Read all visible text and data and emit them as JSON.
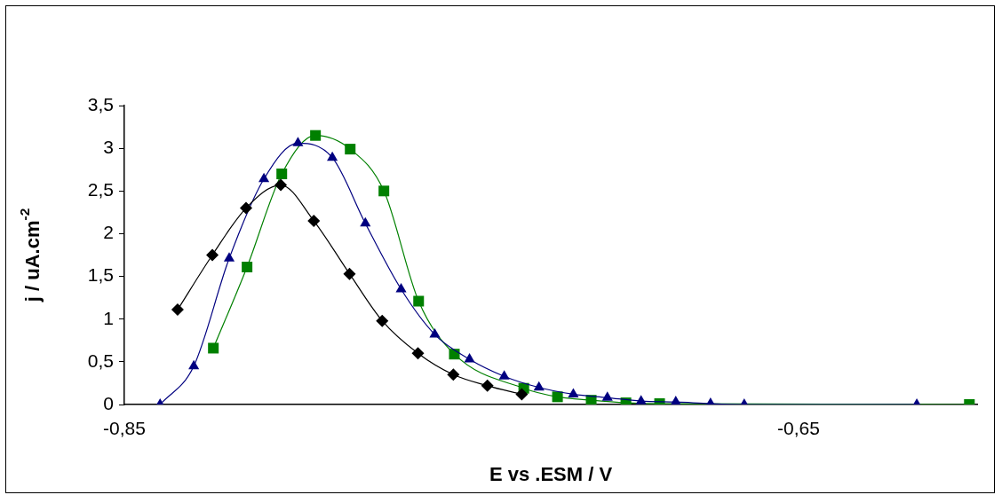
{
  "chart_data": {
    "type": "line",
    "xlabel": "E vs .ESM / V",
    "ylabel": "j / uA.cm$^{-2}$",
    "xlim": [
      -0.85,
      -0.597
    ],
    "xticks": [
      {
        "value": -0.85,
        "label": "-0,85"
      },
      {
        "value": -0.65,
        "label": "-0,65"
      }
    ],
    "ylim": [
      0,
      3.5
    ],
    "yticks": [
      {
        "value": 0,
        "label": "0"
      },
      {
        "value": 0.5,
        "label": "0,5"
      },
      {
        "value": 1,
        "label": "1"
      },
      {
        "value": 1.5,
        "label": "1,5"
      },
      {
        "value": 2,
        "label": "2"
      },
      {
        "value": 2.5,
        "label": "2,5"
      },
      {
        "value": 3,
        "label": "3"
      },
      {
        "value": 3.5,
        "label": "3,5"
      }
    ],
    "grid": false,
    "legend": false,
    "line_style": "solid",
    "series": [
      {
        "color": "#000000",
        "marker": "diamond",
        "x": [
          -0.8342,
          -0.8239,
          -0.8139,
          -0.8036,
          -0.7938,
          -0.7832,
          -0.7735,
          -0.7629,
          -0.7524,
          -0.7423,
          -0.7321
        ],
        "values": [
          1.11,
          1.75,
          2.3,
          2.57,
          2.15,
          1.53,
          0.98,
          0.6,
          0.35,
          0.22,
          0.12
        ]
      },
      {
        "color": "#000080",
        "marker": "triangle",
        "x": [
          -0.8394,
          -0.8294,
          -0.8189,
          -0.8086,
          -0.7985,
          -0.7883,
          -0.7785,
          -0.7679,
          -0.7579,
          -0.7476,
          -0.7373,
          -0.727,
          -0.7168,
          -0.7067,
          -0.6967,
          -0.6864,
          -0.6761,
          -0.6661,
          -0.6149
        ],
        "values": [
          0,
          0.45,
          1.71,
          2.64,
          3.06,
          2.89,
          2.12,
          1.35,
          0.82,
          0.53,
          0.33,
          0.2,
          0.12,
          0.08,
          0.04,
          0.03,
          0.01,
          0,
          0
        ]
      },
      {
        "color": "#008000",
        "marker": "square",
        "x": [
          -0.8236,
          -0.8136,
          -0.8033,
          -0.7933,
          -0.783,
          -0.773,
          -0.7627,
          -0.7521,
          -0.7315,
          -0.7215,
          -0.7115,
          -0.7012,
          -0.6912,
          -0.5993
        ],
        "values": [
          0.66,
          1.61,
          2.7,
          3.15,
          2.99,
          2.5,
          1.21,
          0.59,
          0.19,
          0.09,
          0.05,
          0.02,
          0.01,
          0
        ]
      }
    ]
  }
}
